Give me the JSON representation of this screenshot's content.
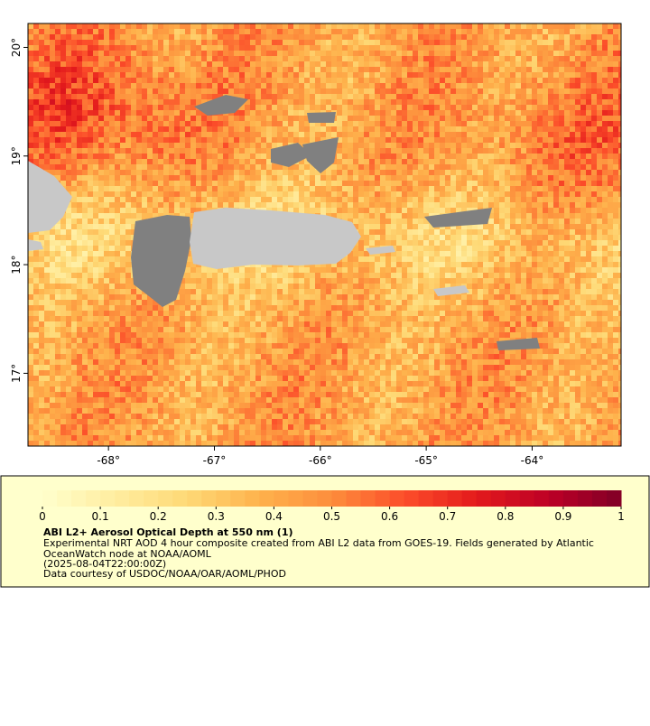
{
  "map": {
    "xlim": [
      -68.76,
      -63.16
    ],
    "ylim": [
      16.33,
      20.22
    ],
    "xticks": [
      {
        "value": -68,
        "label": "-68°"
      },
      {
        "value": -67,
        "label": "-67°"
      },
      {
        "value": -66,
        "label": "-66°"
      },
      {
        "value": -65,
        "label": "-65°"
      },
      {
        "value": -64,
        "label": "-64°"
      }
    ],
    "yticks": [
      {
        "value": 20,
        "label": "20°"
      },
      {
        "value": 19,
        "label": "19°"
      },
      {
        "value": 18,
        "label": "18°"
      },
      {
        "value": 17,
        "label": "17°"
      }
    ]
  },
  "colorbar": {
    "range": [
      0,
      1
    ],
    "ticks": [
      0,
      0.1,
      0.2,
      0.3,
      0.4,
      0.5,
      0.6,
      0.7,
      0.8,
      0.9,
      1
    ],
    "colors": [
      "#ffffcc",
      "#ffeda0",
      "#fed976",
      "#feb24c",
      "#fd8d3c",
      "#fc4e2a",
      "#e31a1c",
      "#bd0026",
      "#800026"
    ]
  },
  "legend": {
    "title": "ABI L2+ Aerosol Optical Depth at 550 nm (1)",
    "lines": [
      "Experimental NRT AOD 4 hour composite created from ABI L2 data from GOES-19. Fields generated by Atlantic",
      "OceanWatch node at NOAA/AOML",
      "(2025-08-04T22:00:00Z)",
      "Data courtesy of USDOC/NOAA/OAR/AOML/PHOD"
    ]
  }
}
